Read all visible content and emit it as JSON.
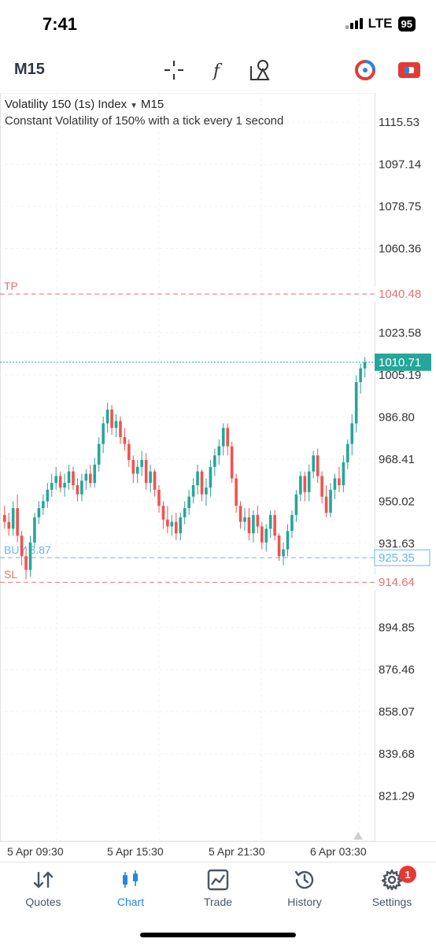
{
  "status": {
    "time": "7:41",
    "network": "LTE",
    "battery": "95"
  },
  "toolbar": {
    "timeframe": "M15",
    "icons": [
      "crosshair-icon",
      "indicators-icon",
      "objects-icon",
      "one-click-trading-icon",
      "trade-toggle-icon"
    ]
  },
  "chart": {
    "symbol": "Volatility 150 (1s) Index",
    "timeframe": "M15",
    "description": "Constant Volatility of 150% with a tick every 1 second",
    "colors": {
      "bull": "#26a69a",
      "bear": "#ef5350",
      "tp_sl": "#e57373",
      "buy_line": "#64b5f6",
      "current_price": "#2196f3",
      "price_tag": "#26a69a"
    },
    "tp_label": "TP",
    "tp_value": "1040.48",
    "sl_label": "SL",
    "sl_value": "914.64",
    "buy_label": "BUY 3.87",
    "buy_value": "925.35",
    "current_value": "1010.71"
  },
  "chart_data": {
    "type": "candlestick",
    "y_ticks": [
      "1115.53",
      "1097.14",
      "1078.75",
      "1060.36",
      "1023.58",
      "1005.19",
      "986.80",
      "968.41",
      "950.02",
      "931.63",
      "894.85",
      "876.46",
      "858.07",
      "839.68",
      "821.29"
    ],
    "ylim": [
      805,
      1125
    ],
    "x_ticks": [
      "5 Apr 09:30",
      "5 Apr 15:30",
      "5 Apr 21:30",
      "6 Apr 03:30"
    ],
    "levels": {
      "take_profit": 1040.48,
      "buy": 925.35,
      "stop_loss": 914.64,
      "current": 1010.71
    },
    "candles": [
      [
        944,
        948,
        938,
        941
      ],
      [
        941,
        945,
        935,
        938
      ],
      [
        938,
        950,
        935,
        947
      ],
      [
        947,
        953,
        932,
        935
      ],
      [
        935,
        937,
        922,
        926
      ],
      [
        926,
        930,
        916,
        920
      ],
      [
        920,
        935,
        917,
        932
      ],
      [
        932,
        945,
        930,
        943
      ],
      [
        943,
        950,
        940,
        947
      ],
      [
        947,
        953,
        944,
        950
      ],
      [
        950,
        958,
        947,
        955
      ],
      [
        955,
        962,
        952,
        958
      ],
      [
        958,
        965,
        955,
        961
      ],
      [
        961,
        963,
        954,
        956
      ],
      [
        956,
        962,
        952,
        958
      ],
      [
        958,
        966,
        955,
        963
      ],
      [
        963,
        965,
        955,
        957
      ],
      [
        957,
        960,
        950,
        953
      ],
      [
        953,
        962,
        950,
        959
      ],
      [
        959,
        964,
        955,
        962
      ],
      [
        962,
        966,
        956,
        958
      ],
      [
        958,
        969,
        956,
        966
      ],
      [
        966,
        978,
        963,
        975
      ],
      [
        975,
        987,
        971,
        984
      ],
      [
        984,
        993,
        980,
        990
      ],
      [
        990,
        992,
        979,
        982
      ],
      [
        982,
        988,
        978,
        985
      ],
      [
        985,
        987,
        975,
        978
      ],
      [
        978,
        982,
        972,
        975
      ],
      [
        975,
        977,
        965,
        968
      ],
      [
        968,
        970,
        958,
        962
      ],
      [
        962,
        968,
        958,
        965
      ],
      [
        965,
        972,
        961,
        968
      ],
      [
        968,
        971,
        955,
        958
      ],
      [
        958,
        966,
        954,
        963
      ],
      [
        963,
        964,
        952,
        955
      ],
      [
        955,
        957,
        945,
        948
      ],
      [
        948,
        950,
        938,
        942
      ],
      [
        942,
        948,
        936,
        939
      ],
      [
        939,
        944,
        935,
        941
      ],
      [
        941,
        945,
        933,
        936
      ],
      [
        936,
        945,
        933,
        943
      ],
      [
        943,
        950,
        940,
        947
      ],
      [
        947,
        955,
        944,
        952
      ],
      [
        952,
        960,
        949,
        957
      ],
      [
        957,
        966,
        953,
        963
      ],
      [
        963,
        964,
        950,
        953
      ],
      [
        953,
        960,
        948,
        956
      ],
      [
        956,
        968,
        952,
        965
      ],
      [
        965,
        973,
        961,
        970
      ],
      [
        970,
        977,
        966,
        974
      ],
      [
        974,
        984,
        970,
        982
      ],
      [
        982,
        984,
        970,
        974
      ],
      [
        974,
        976,
        958,
        960
      ],
      [
        960,
        962,
        945,
        948
      ],
      [
        948,
        950,
        938,
        941
      ],
      [
        941,
        947,
        937,
        943
      ],
      [
        943,
        947,
        933,
        936
      ],
      [
        936,
        946,
        932,
        944
      ],
      [
        944,
        948,
        936,
        939
      ],
      [
        939,
        941,
        929,
        932
      ],
      [
        932,
        940,
        928,
        938
      ],
      [
        938,
        946,
        934,
        944
      ],
      [
        944,
        946,
        933,
        935
      ],
      [
        935,
        936,
        924,
        926
      ],
      [
        926,
        932,
        922,
        929
      ],
      [
        929,
        940,
        926,
        937
      ],
      [
        937,
        946,
        934,
        944
      ],
      [
        944,
        955,
        941,
        953
      ],
      [
        953,
        963,
        950,
        961
      ],
      [
        961,
        963,
        950,
        954
      ],
      [
        954,
        966,
        950,
        963
      ],
      [
        963,
        972,
        960,
        970
      ],
      [
        970,
        973,
        958,
        961
      ],
      [
        961,
        963,
        949,
        952
      ],
      [
        952,
        957,
        943,
        945
      ],
      [
        945,
        958,
        943,
        955
      ],
      [
        955,
        962,
        951,
        960
      ],
      [
        960,
        965,
        954,
        957
      ],
      [
        957,
        970,
        954,
        967
      ],
      [
        967,
        977,
        964,
        975
      ],
      [
        975,
        988,
        970,
        984
      ],
      [
        984,
        1005,
        980,
        1002
      ],
      [
        1002,
        1010,
        997,
        1008
      ],
      [
        1008,
        1013,
        1004,
        1010.71
      ]
    ]
  },
  "nav": {
    "tabs": [
      {
        "label": "Quotes"
      },
      {
        "label": "Chart"
      },
      {
        "label": "Trade"
      },
      {
        "label": "History"
      },
      {
        "label": "Settings",
        "badge": "1"
      }
    ]
  }
}
